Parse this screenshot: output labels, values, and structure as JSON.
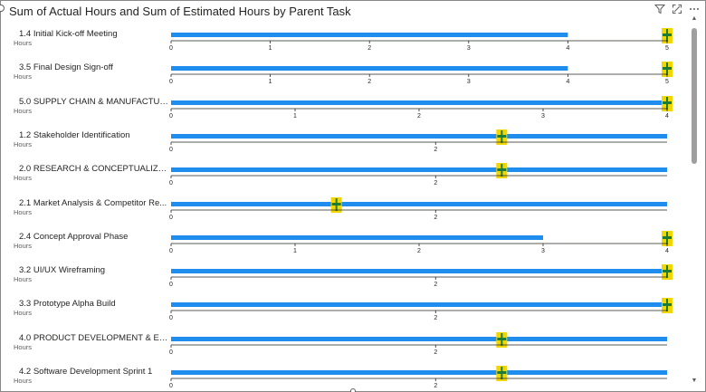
{
  "visual": {
    "title": "Sum of Actual Hours and Sum of Estimated Hours by Parent Task",
    "icons": [
      "filter-icon",
      "focus-mode-icon",
      "more-options-icon"
    ]
  },
  "colors": {
    "actual_bar": "#1f8ded",
    "target_band": "#f2d600",
    "target_marker": "#1e7b34",
    "axis": "#252423"
  },
  "chart_data": {
    "type": "bullet",
    "title": "Sum of Actual Hours and Sum of Estimated Hours by Parent Task",
    "unit_label": "Hours",
    "series": [
      {
        "name": "Sum of Actual Hours"
      },
      {
        "name": "Sum of Estimated Hours"
      }
    ],
    "rows": [
      {
        "label": "1.4 Initial Kick-off Meeting",
        "actual": 4.0,
        "target": 5.0,
        "axis_max": 5,
        "ticks": [
          0,
          1,
          2,
          3,
          4,
          5
        ]
      },
      {
        "label": "3.5 Final Design Sign-off",
        "actual": 4.0,
        "target": 5.0,
        "axis_max": 5,
        "ticks": [
          0,
          1,
          2,
          3,
          4,
          5
        ]
      },
      {
        "label": "5.0 SUPPLY CHAIN & MANUFACTURI...",
        "actual": 4.0,
        "target": 4.0,
        "axis_max": 4,
        "ticks": [
          0,
          1,
          2,
          3,
          4
        ]
      },
      {
        "label": "1.2 Stakeholder Identification",
        "actual": 3.75,
        "target": 2.5,
        "axis_max": 3.75,
        "ticks": [
          0,
          2
        ]
      },
      {
        "label": "2.0 RESEARCH & CONCEPTUALIZATI...",
        "actual": 3.75,
        "target": 2.5,
        "axis_max": 3.75,
        "ticks": [
          0,
          2
        ]
      },
      {
        "label": "2.1 Market Analysis & Competitor Re...",
        "actual": 3.75,
        "target": 1.25,
        "axis_max": 3.75,
        "ticks": [
          0,
          2
        ]
      },
      {
        "label": "2.4 Concept Approval Phase",
        "actual": 3.0,
        "target": 4.0,
        "axis_max": 4,
        "ticks": [
          0,
          1,
          2,
          3,
          4
        ]
      },
      {
        "label": "3.2 UI/UX Wireframing",
        "actual": 3.75,
        "target": 3.75,
        "axis_max": 3.75,
        "ticks": [
          0,
          2
        ]
      },
      {
        "label": "3.3 Prototype Alpha Build",
        "actual": 3.75,
        "target": 3.75,
        "axis_max": 3.75,
        "ticks": [
          0,
          2
        ]
      },
      {
        "label": "4.0 PRODUCT DEVELOPMENT & ENG...",
        "actual": 3.75,
        "target": 2.5,
        "axis_max": 3.75,
        "ticks": [
          0,
          2
        ]
      },
      {
        "label": "4.2 Software Development Sprint 1",
        "actual": 3.75,
        "target": 2.5,
        "axis_max": 3.75,
        "ticks": [
          0,
          2
        ]
      }
    ]
  }
}
